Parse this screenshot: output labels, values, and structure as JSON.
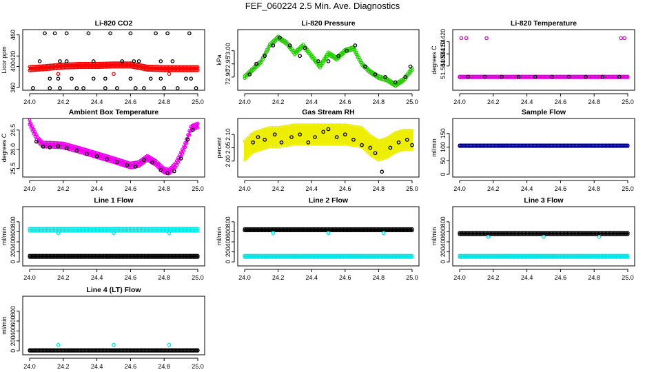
{
  "page": {
    "title": "FEF_060224  2.5 Min. Ave. Diagnostics"
  },
  "chart_data": [
    {
      "id": "co2",
      "type": "scatter",
      "title": "Li-820 CO2",
      "ylabel": "Licor ppm",
      "xlim": [
        24.0,
        25.0
      ],
      "ylim": [
        355,
        470
      ],
      "xticks": [
        "24.0",
        "24.2",
        "24.4",
        "24.6",
        "24.8",
        "25.0"
      ],
      "yticks": [
        {
          "v": 360,
          "label": "360"
        },
        {
          "v": 400,
          "label": "400"
        },
        {
          "v": 420,
          "label": "420"
        },
        {
          "v": 460,
          "label": "460"
        }
      ],
      "series": [
        {
          "name": "average",
          "color": "#ff0000",
          "style": "band",
          "x": [
            24.0,
            24.1,
            24.2,
            24.3,
            24.4,
            24.5,
            24.6,
            24.7,
            24.8,
            24.9,
            25.0
          ],
          "y": [
            396,
            398,
            401,
            402,
            402,
            403,
            403,
            397,
            396,
            396,
            396
          ],
          "width": 8
        },
        {
          "name": "outliers-red",
          "color": "#ff0000",
          "style": "points",
          "x": [
            24.17,
            24.5,
            24.83
          ],
          "y": [
            386,
            386,
            386
          ]
        },
        {
          "name": "black-top",
          "color": "#000000",
          "style": "points",
          "x": [
            24.09,
            24.15,
            24.22,
            24.35,
            24.48,
            24.6,
            24.75,
            24.82,
            24.95
          ],
          "y": [
            463,
            463,
            463,
            463,
            463,
            463,
            463,
            463,
            463
          ]
        },
        {
          "name": "black-mid",
          "color": "#000000",
          "style": "points",
          "x": [
            24.06,
            24.18,
            24.22,
            24.38,
            24.55,
            24.62,
            24.65,
            24.78,
            24.85
          ],
          "y": [
            410,
            410,
            410,
            410,
            410,
            410,
            410,
            410,
            410
          ]
        },
        {
          "name": "black-low",
          "color": "#000000",
          "style": "points",
          "x": [
            24.12,
            24.17,
            24.25,
            24.38,
            24.45,
            24.6,
            24.72,
            24.78,
            24.93,
            24.96
          ],
          "y": [
            377,
            377,
            377,
            377,
            377,
            377,
            377,
            377,
            377,
            377
          ]
        },
        {
          "name": "black-bottom",
          "color": "#000000",
          "style": "points",
          "x": [
            24.02,
            24.12,
            24.18,
            24.28,
            24.32,
            24.45,
            24.52,
            24.63,
            24.68,
            24.8,
            24.88,
            24.99
          ],
          "y": [
            359,
            359,
            359,
            359,
            359,
            359,
            359,
            359,
            359,
            359,
            359,
            359
          ]
        }
      ]
    },
    {
      "id": "pressure",
      "type": "scatter",
      "title": "Li-820 Pressure",
      "ylabel": "kPa",
      "xlim": [
        24.0,
        25.0
      ],
      "ylim": [
        72.85,
        73.08
      ],
      "xticks": [
        "24.0",
        "24.2",
        "24.4",
        "24.6",
        "24.8",
        "25.0"
      ],
      "yticks": [
        {
          "v": 72.9,
          "label": "72.90"
        },
        {
          "v": 72.95,
          "label": "72.95"
        },
        {
          "v": 73.0,
          "label": "73.00"
        }
      ],
      "series": [
        {
          "name": "pressure-trace",
          "color": "#22cc00",
          "style": "band",
          "x": [
            24.0,
            24.05,
            24.1,
            24.15,
            24.2,
            24.25,
            24.3,
            24.35,
            24.4,
            24.45,
            24.5,
            24.55,
            24.6,
            24.65,
            24.7,
            24.75,
            24.8,
            24.85,
            24.9,
            24.95,
            25.0
          ],
          "y": [
            72.9,
            72.93,
            72.96,
            73.02,
            73.05,
            73.03,
            72.99,
            73.02,
            72.98,
            72.94,
            72.99,
            72.97,
            73.0,
            73.01,
            72.95,
            72.92,
            72.9,
            72.89,
            72.87,
            72.89,
            72.93
          ],
          "width": 6
        },
        {
          "name": "pressure-black",
          "color": "#000000",
          "style": "points",
          "x": [
            24.03,
            24.07,
            24.12,
            24.17,
            24.21,
            24.27,
            24.33,
            24.36,
            24.44,
            24.5,
            24.56,
            24.61,
            24.66,
            24.72,
            24.78,
            24.84,
            24.9,
            24.96,
            24.99
          ],
          "y": [
            72.91,
            72.95,
            72.98,
            73.02,
            73.05,
            73.02,
            72.98,
            73.01,
            72.96,
            72.96,
            72.98,
            73.0,
            73.02,
            72.94,
            72.91,
            72.9,
            72.88,
            72.9,
            72.94
          ]
        }
      ]
    },
    {
      "id": "licor-temp",
      "type": "scatter",
      "title": "Li-820 Temperature",
      "ylabel": "degrees C",
      "xlim": [
        24.0,
        25.0
      ],
      "ylim": [
        51.5438,
        51.5443
      ],
      "xticks": [
        "24.0",
        "24.2",
        "24.4",
        "24.6",
        "24.8",
        "25.0"
      ],
      "yticks": [
        {
          "v": 51.544,
          "label": "51.54400"
        },
        {
          "v": 51.5441,
          "label": "51.54410"
        },
        {
          "v": 51.5442,
          "label": "51.54420"
        }
      ],
      "series": [
        {
          "name": "temp-base",
          "color": "#dd00dd",
          "style": "band",
          "x": [
            24.0,
            25.0
          ],
          "y": [
            51.54391,
            51.54391
          ],
          "width": 4
        },
        {
          "name": "temp-black",
          "color": "#000000",
          "style": "points",
          "x": [
            24.05,
            24.15,
            24.25,
            24.35,
            24.45,
            24.55,
            24.65,
            24.75,
            24.85,
            24.95
          ],
          "y": [
            51.54391,
            51.54391,
            51.54391,
            51.54391,
            51.54391,
            51.54391,
            51.54391,
            51.54391,
            51.54391,
            51.54391
          ]
        },
        {
          "name": "temp-outliers",
          "color": "#dd00dd",
          "style": "points",
          "x": [
            24.01,
            24.04,
            24.16,
            24.96,
            24.98
          ],
          "y": [
            51.54423,
            51.54423,
            51.54423,
            51.54423,
            51.54423
          ]
        }
      ]
    },
    {
      "id": "ambient-temp",
      "type": "scatter",
      "title": "Ambient Box Temperature",
      "ylabel": "degrees C",
      "xlim": [
        24.0,
        25.0
      ],
      "ylim": [
        25.28,
        26.8
      ],
      "xticks": [
        "24.0",
        "24.2",
        "24.4",
        "24.6",
        "24.8",
        "25.0"
      ],
      "yticks": [
        {
          "v": 25.5,
          "label": "25.5"
        },
        {
          "v": 26.0,
          "label": "26.0"
        },
        {
          "v": 26.5,
          "label": "26.5"
        }
      ],
      "series": [
        {
          "name": "ambient-trace",
          "color": "#ee00ee",
          "style": "band",
          "x": [
            24.0,
            24.02,
            24.05,
            24.08,
            24.12,
            24.2,
            24.3,
            24.4,
            24.5,
            24.6,
            24.65,
            24.7,
            24.75,
            24.8,
            24.83,
            24.87,
            24.92,
            24.96,
            25.0
          ],
          "y": [
            26.7,
            26.5,
            26.25,
            26.12,
            26.12,
            26.1,
            25.98,
            25.85,
            25.72,
            25.58,
            25.62,
            25.78,
            25.65,
            25.45,
            25.42,
            25.6,
            26.05,
            26.55,
            26.62
          ],
          "width": 9
        },
        {
          "name": "ambient-black",
          "color": "#000000",
          "style": "points",
          "x": [
            24.04,
            24.08,
            24.12,
            24.17,
            24.22,
            24.28,
            24.34,
            24.4,
            24.46,
            24.52,
            24.58,
            24.63,
            24.68,
            24.73,
            24.78,
            24.82,
            24.86,
            24.9,
            24.94,
            24.97
          ],
          "y": [
            26.2,
            26.07,
            26.05,
            26.08,
            26.03,
            25.97,
            25.88,
            25.82,
            25.74,
            25.67,
            25.59,
            25.55,
            25.72,
            25.66,
            25.46,
            25.38,
            25.43,
            25.76,
            26.25,
            26.5
          ]
        }
      ]
    },
    {
      "id": "rh",
      "type": "scatter",
      "title": "Gas Stream RH",
      "ylabel": "percent",
      "xlim": [
        24.0,
        25.0
      ],
      "ylim": [
        1.94,
        2.16
      ],
      "xticks": [
        "24.0",
        "24.2",
        "24.4",
        "24.6",
        "24.8",
        "25.0"
      ],
      "yticks": [
        {
          "v": 2.0,
          "label": "2.00"
        },
        {
          "v": 2.05,
          "label": "2.05"
        },
        {
          "v": 2.1,
          "label": "2.10"
        }
      ],
      "series": [
        {
          "name": "rh-trace",
          "color": "#eeee00",
          "style": "band",
          "x": [
            24.0,
            24.05,
            24.1,
            24.15,
            24.2,
            24.3,
            24.4,
            24.5,
            24.6,
            24.7,
            24.75,
            24.8,
            24.85,
            24.9,
            24.95,
            25.0
          ],
          "y": [
            2.04,
            2.07,
            2.08,
            2.09,
            2.09,
            2.1,
            2.1,
            2.1,
            2.1,
            2.09,
            2.06,
            2.04,
            2.05,
            2.07,
            2.08,
            2.08
          ],
          "width": 30
        },
        {
          "name": "rh-black",
          "color": "#000000",
          "style": "points",
          "x": [
            24.05,
            24.08,
            24.12,
            24.18,
            24.22,
            24.28,
            24.33,
            24.38,
            24.42,
            24.47,
            24.5,
            24.55,
            24.6,
            24.65,
            24.7,
            24.75,
            24.78,
            24.82,
            24.87,
            24.92,
            24.97,
            25.0
          ],
          "y": [
            2.07,
            2.09,
            2.08,
            2.1,
            2.07,
            2.09,
            2.1,
            2.07,
            2.09,
            2.11,
            2.12,
            2.09,
            2.1,
            2.08,
            2.06,
            2.05,
            2.03,
            1.96,
            2.05,
            2.07,
            2.08,
            2.06
          ]
        }
      ]
    },
    {
      "id": "sample-flow",
      "type": "scatter",
      "title": "Sample Flow",
      "ylabel": "ml/min",
      "xlim": [
        24.0,
        25.0
      ],
      "ylim": [
        -10,
        205
      ],
      "xticks": [
        "24.0",
        "24.2",
        "24.4",
        "24.6",
        "24.8",
        "25.0"
      ],
      "yticks": [
        {
          "v": 0,
          "label": "0"
        },
        {
          "v": 50,
          "label": "50"
        },
        {
          "v": 100,
          "label": "100"
        },
        {
          "v": 150,
          "label": "150"
        }
      ],
      "series": [
        {
          "name": "sample-blue",
          "color": "#000099",
          "style": "band",
          "x": [
            24.0,
            25.0
          ],
          "y": [
            105,
            105
          ],
          "width": 4
        }
      ]
    },
    {
      "id": "line1",
      "type": "scatter",
      "title": "Line 1 Flow",
      "ylabel": "ml/min",
      "xlim": [
        24.0,
        25.0
      ],
      "ylim": [
        -80,
        1100
      ],
      "xticks": [
        "24.0",
        "24.2",
        "24.4",
        "24.6",
        "24.8",
        "25.0"
      ],
      "yticks": [
        {
          "v": 0,
          "label": "0"
        },
        {
          "v": 200,
          "label": "200"
        },
        {
          "v": 400,
          "label": "400"
        },
        {
          "v": 600,
          "label": "600"
        },
        {
          "v": 800,
          "label": "800"
        }
      ],
      "series": [
        {
          "name": "line1-cyan",
          "color": "#00e5e5",
          "style": "band",
          "x": [
            24.0,
            25.0
          ],
          "y": [
            640,
            640
          ],
          "width": 6
        },
        {
          "name": "line1-black",
          "color": "#000000",
          "style": "band",
          "x": [
            24.0,
            25.0
          ],
          "y": [
            110,
            110
          ],
          "width": 5
        },
        {
          "name": "line1-outliers",
          "color": "#00e5e5",
          "style": "points",
          "x": [
            24.17,
            24.5,
            24.83
          ],
          "y": [
            575,
            575,
            575
          ]
        }
      ]
    },
    {
      "id": "line2",
      "type": "scatter",
      "title": "Line 2 Flow",
      "ylabel": "ml/min",
      "xlim": [
        24.0,
        25.0
      ],
      "ylim": [
        -80,
        1100
      ],
      "xticks": [
        "24.0",
        "24.2",
        "24.4",
        "24.6",
        "24.8",
        "25.0"
      ],
      "yticks": [
        {
          "v": 0,
          "label": "0"
        },
        {
          "v": 200,
          "label": "200"
        },
        {
          "v": 400,
          "label": "400"
        },
        {
          "v": 600,
          "label": "600"
        },
        {
          "v": 800,
          "label": "800"
        }
      ],
      "series": [
        {
          "name": "line2-black",
          "color": "#000000",
          "style": "band",
          "x": [
            24.0,
            25.0
          ],
          "y": [
            640,
            640
          ],
          "width": 5
        },
        {
          "name": "line2-cyan",
          "color": "#00e5e5",
          "style": "band",
          "x": [
            24.0,
            25.0
          ],
          "y": [
            110,
            110
          ],
          "width": 5
        },
        {
          "name": "line2-outliers",
          "color": "#00e5e5",
          "style": "points",
          "x": [
            24.17,
            24.5,
            24.83
          ],
          "y": [
            575,
            575,
            575
          ]
        }
      ]
    },
    {
      "id": "line3",
      "type": "scatter",
      "title": "Line 3 Flow",
      "ylabel": "ml/min",
      "xlim": [
        24.0,
        25.0
      ],
      "ylim": [
        -80,
        1100
      ],
      "xticks": [
        "24.0",
        "24.2",
        "24.4",
        "24.6",
        "24.8",
        "25.0"
      ],
      "yticks": [
        {
          "v": 0,
          "label": "0"
        },
        {
          "v": 200,
          "label": "200"
        },
        {
          "v": 400,
          "label": "400"
        },
        {
          "v": 600,
          "label": "600"
        },
        {
          "v": 800,
          "label": "800"
        }
      ],
      "series": [
        {
          "name": "line3-black",
          "color": "#000000",
          "style": "band",
          "x": [
            24.0,
            25.0
          ],
          "y": [
            565,
            565
          ],
          "width": 5
        },
        {
          "name": "line3-cyan",
          "color": "#00e5e5",
          "style": "band",
          "x": [
            24.0,
            25.0
          ],
          "y": [
            110,
            110
          ],
          "width": 5
        },
        {
          "name": "line3-outliers",
          "color": "#00e5e5",
          "style": "points",
          "x": [
            24.17,
            24.5,
            24.83
          ],
          "y": [
            500,
            500,
            500
          ]
        }
      ]
    },
    {
      "id": "line4",
      "type": "scatter",
      "title": "Line 4 (LT) Flow",
      "ylabel": "ml/min",
      "xlim": [
        24.0,
        25.0
      ],
      "ylim": [
        -80,
        1100
      ],
      "xticks": [
        "24.0",
        "24.2",
        "24.4",
        "24.6",
        "24.8",
        "25.0"
      ],
      "yticks": [
        {
          "v": 0,
          "label": "0"
        },
        {
          "v": 200,
          "label": "200"
        },
        {
          "v": 400,
          "label": "400"
        },
        {
          "v": 600,
          "label": "600"
        },
        {
          "v": 800,
          "label": "800"
        }
      ],
      "series": [
        {
          "name": "line4-black",
          "color": "#000000",
          "style": "band",
          "x": [
            24.0,
            25.0
          ],
          "y": [
            8,
            8
          ],
          "width": 4
        },
        {
          "name": "line4-outliers",
          "color": "#00e5e5",
          "style": "points",
          "x": [
            24.17,
            24.5,
            24.83
          ],
          "y": [
            120,
            120,
            120
          ]
        }
      ]
    }
  ]
}
